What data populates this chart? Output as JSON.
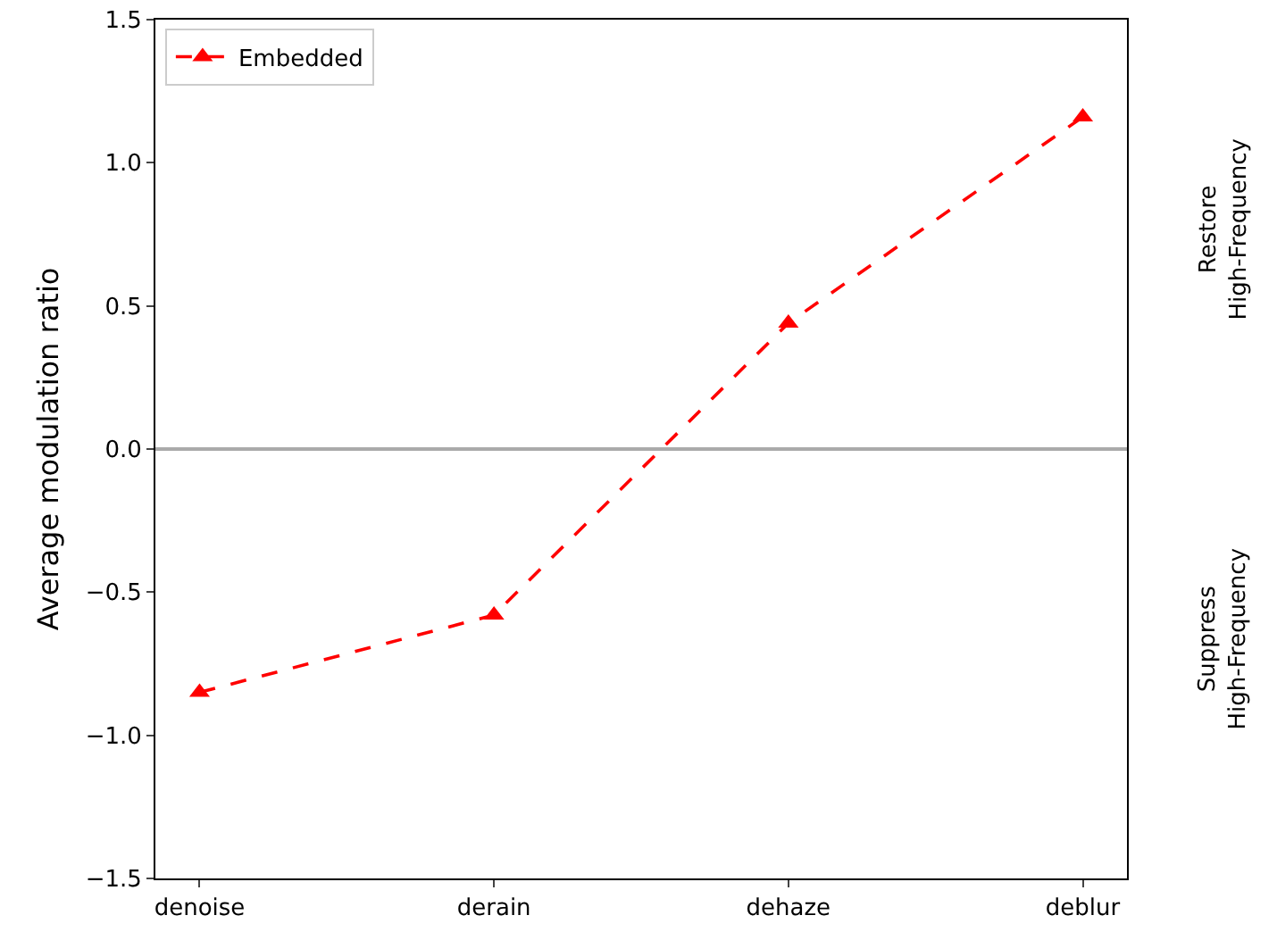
{
  "chart_data": {
    "type": "line",
    "ylabel": "Average modulation ratio",
    "categories": [
      "denoise",
      "derain",
      "dehaze",
      "deblur"
    ],
    "series": [
      {
        "name": "Embedded",
        "color": "#ff0000",
        "values": [
          -0.85,
          -0.58,
          0.44,
          1.16
        ]
      }
    ],
    "marker": "triangle",
    "line_style": "dashed",
    "ylim": [
      -1.5,
      1.5
    ],
    "yticks": [
      {
        "value": -1.5,
        "label": "−1.5"
      },
      {
        "value": -1,
        "label": "−1.0"
      },
      {
        "value": -0.5,
        "label": "−0.5"
      },
      {
        "value": 0,
        "label": "0.0"
      },
      {
        "value": 0.5,
        "label": "0.5"
      },
      {
        "value": 1,
        "label": "1.0"
      },
      {
        "value": 1.5,
        "label": "1.5"
      }
    ],
    "ref_lines": [
      {
        "axis": "y",
        "value": 0,
        "color": "#aaaaaa"
      }
    ],
    "annotations": [
      "Restore\nHigh-Frequency",
      "Suppress\nHigh-Frequency"
    ],
    "grid": false,
    "legend": "top left"
  }
}
